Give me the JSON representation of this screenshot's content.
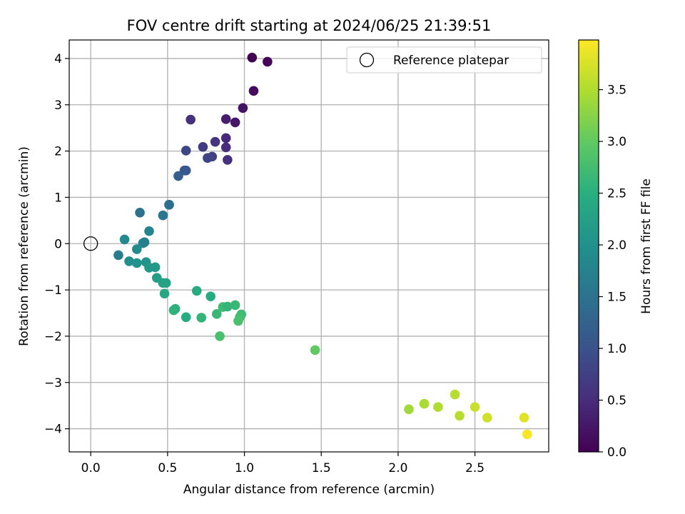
{
  "chart_data": {
    "type": "scatter",
    "title": "FOV centre drift starting at 2024/06/25 21:39:51",
    "xlabel": "Angular distance from reference (arcmin)",
    "ylabel": "Rotation from reference (arcmin)",
    "xlim": [
      -0.14,
      2.98
    ],
    "ylim": [
      -4.5,
      4.4
    ],
    "xticks": [
      0.0,
      0.5,
      1.0,
      1.5,
      2.0,
      2.5
    ],
    "xtick_labels": [
      "0.0",
      "0.5",
      "1.0",
      "1.5",
      "2.0",
      "2.5"
    ],
    "yticks": [
      -4,
      -3,
      -2,
      -1,
      0,
      1,
      2,
      3,
      4
    ],
    "ytick_labels": [
      "−4",
      "−3",
      "−2",
      "−1",
      "0",
      "1",
      "2",
      "3",
      "4"
    ],
    "grid": true,
    "colormap": "viridis",
    "colorbar": {
      "label": "Hours from first FF file",
      "range": [
        0.0,
        3.98
      ],
      "ticks": [
        0.0,
        0.5,
        1.0,
        1.5,
        2.0,
        2.5,
        3.0,
        3.5
      ],
      "tick_labels": [
        "0.0",
        "0.5",
        "1.0",
        "1.5",
        "2.0",
        "2.5",
        "3.0",
        "3.5"
      ]
    },
    "legend": {
      "placement": "upper right",
      "entries": [
        {
          "label": "Reference platepar",
          "marker": "open-circle"
        }
      ]
    },
    "reference_point": {
      "x": 0.0,
      "y": 0.0
    },
    "points": [
      {
        "x": 1.05,
        "y": 4.02,
        "c": 0.0
      },
      {
        "x": 1.15,
        "y": 3.93,
        "c": 0.05
      },
      {
        "x": 1.06,
        "y": 3.3,
        "c": 0.1
      },
      {
        "x": 0.99,
        "y": 2.93,
        "c": 0.2
      },
      {
        "x": 0.94,
        "y": 2.62,
        "c": 0.25
      },
      {
        "x": 0.88,
        "y": 2.69,
        "c": 0.3
      },
      {
        "x": 0.65,
        "y": 2.68,
        "c": 0.55
      },
      {
        "x": 0.88,
        "y": 2.28,
        "c": 0.45
      },
      {
        "x": 0.88,
        "y": 2.08,
        "c": 0.5
      },
      {
        "x": 0.81,
        "y": 2.2,
        "c": 0.6
      },
      {
        "x": 0.89,
        "y": 1.81,
        "c": 0.55
      },
      {
        "x": 0.73,
        "y": 2.09,
        "c": 0.7
      },
      {
        "x": 0.79,
        "y": 1.88,
        "c": 0.75
      },
      {
        "x": 0.76,
        "y": 1.85,
        "c": 0.8
      },
      {
        "x": 0.62,
        "y": 2.01,
        "c": 0.85
      },
      {
        "x": 0.61,
        "y": 1.58,
        "c": 1.05
      },
      {
        "x": 0.62,
        "y": 1.58,
        "c": 1.1
      },
      {
        "x": 0.57,
        "y": 1.46,
        "c": 1.2
      },
      {
        "x": 0.51,
        "y": 0.84,
        "c": 1.4
      },
      {
        "x": 0.51,
        "y": 0.84,
        "c": 1.45
      },
      {
        "x": 0.32,
        "y": 0.67,
        "c": 1.5
      },
      {
        "x": 0.47,
        "y": 0.61,
        "c": 1.55
      },
      {
        "x": 0.38,
        "y": 0.27,
        "c": 1.8
      },
      {
        "x": 0.22,
        "y": 0.09,
        "c": 1.85
      },
      {
        "x": 0.34,
        "y": 0.01,
        "c": 1.75
      },
      {
        "x": 0.35,
        "y": 0.03,
        "c": 1.7
      },
      {
        "x": 0.3,
        "y": -0.12,
        "c": 1.9
      },
      {
        "x": 0.18,
        "y": -0.25,
        "c": 1.65
      },
      {
        "x": 0.25,
        "y": -0.38,
        "c": 1.95
      },
      {
        "x": 0.3,
        "y": -0.42,
        "c": 2.0
      },
      {
        "x": 0.36,
        "y": -0.4,
        "c": 2.05
      },
      {
        "x": 0.38,
        "y": -0.52,
        "c": 2.1
      },
      {
        "x": 0.42,
        "y": -0.51,
        "c": 2.15
      },
      {
        "x": 0.43,
        "y": -0.74,
        "c": 2.2
      },
      {
        "x": 0.47,
        "y": -0.85,
        "c": 2.25
      },
      {
        "x": 0.49,
        "y": -0.85,
        "c": 2.3
      },
      {
        "x": 0.48,
        "y": -1.08,
        "c": 2.35
      },
      {
        "x": 0.69,
        "y": -1.02,
        "c": 2.4
      },
      {
        "x": 0.78,
        "y": -1.14,
        "c": 2.45
      },
      {
        "x": 0.55,
        "y": -1.41,
        "c": 2.5
      },
      {
        "x": 0.54,
        "y": -1.44,
        "c": 2.55
      },
      {
        "x": 0.62,
        "y": -1.59,
        "c": 2.45
      },
      {
        "x": 0.72,
        "y": -1.6,
        "c": 2.6
      },
      {
        "x": 0.82,
        "y": -1.52,
        "c": 2.65
      },
      {
        "x": 0.86,
        "y": -1.37,
        "c": 2.7
      },
      {
        "x": 0.89,
        "y": -1.36,
        "c": 2.6
      },
      {
        "x": 0.94,
        "y": -1.33,
        "c": 2.65
      },
      {
        "x": 0.98,
        "y": -1.53,
        "c": 2.7
      },
      {
        "x": 0.97,
        "y": -1.59,
        "c": 2.75
      },
      {
        "x": 0.96,
        "y": -1.67,
        "c": 2.8
      },
      {
        "x": 0.84,
        "y": -2.0,
        "c": 2.8
      },
      {
        "x": 1.46,
        "y": -2.3,
        "c": 3.0
      },
      {
        "x": 2.07,
        "y": -3.58,
        "c": 3.4
      },
      {
        "x": 2.17,
        "y": -3.46,
        "c": 3.45
      },
      {
        "x": 2.26,
        "y": -3.53,
        "c": 3.5
      },
      {
        "x": 2.37,
        "y": -3.26,
        "c": 3.55
      },
      {
        "x": 2.4,
        "y": -3.72,
        "c": 3.55
      },
      {
        "x": 2.5,
        "y": -3.53,
        "c": 3.65
      },
      {
        "x": 2.58,
        "y": -3.76,
        "c": 3.7
      },
      {
        "x": 2.82,
        "y": -3.76,
        "c": 3.8
      },
      {
        "x": 2.84,
        "y": -4.12,
        "c": 3.95
      }
    ]
  }
}
